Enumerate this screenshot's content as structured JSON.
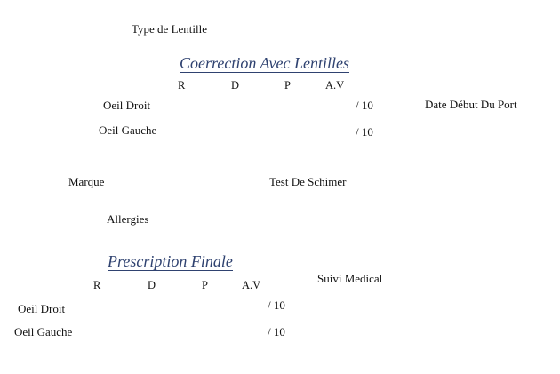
{
  "theme": {
    "heading_color": "#2f4270",
    "text_color": "#111111",
    "background": "#ffffff"
  },
  "type_lentille": {
    "label": "Type de Lentille"
  },
  "correction": {
    "title": "Coerrection Avec Lentilles",
    "columns": [
      "R",
      "D",
      "P",
      "A.V"
    ],
    "rows": [
      {
        "label": "Oeil Droit",
        "av_suffix": "/ 10"
      },
      {
        "label": "Oeil Gauche",
        "av_suffix": "/ 10"
      }
    ],
    "date_label": "Date Début Du Port"
  },
  "marque": {
    "label": "Marque"
  },
  "test_schimer": {
    "label": "Test De Schimer"
  },
  "allergies": {
    "label": "Allergies"
  },
  "prescription": {
    "title": "Prescription Finale",
    "columns": [
      "R",
      "D",
      "P",
      "A.V"
    ],
    "rows": [
      {
        "label": "Oeil Droit",
        "av_suffix": "/ 10"
      },
      {
        "label": "Oeil Gauche",
        "av_suffix": "/ 10"
      }
    ],
    "suivi_label": "Suivi Medical"
  }
}
